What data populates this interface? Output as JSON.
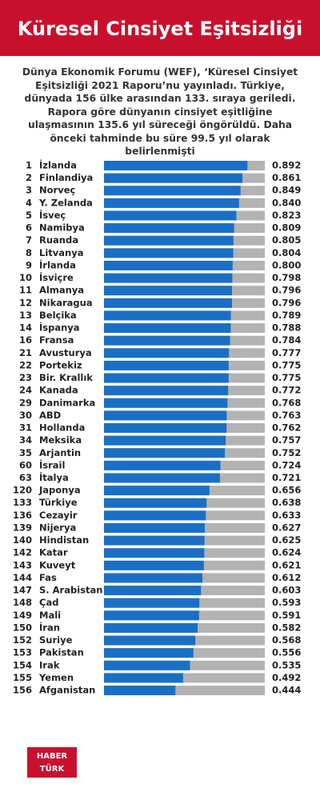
{
  "chart_data": {
    "type": "bar",
    "orientation": "horizontal",
    "title": "Küresel Cinsiyet Eşitsizliği",
    "subtitle": "Dünya Ekonomik Forumu (WEF), ‘Küresel Cinsiyet Eşitsizliği 2021 Raporu’nu yayınladı. Türkiye, dünyada 156 ülke arasından 133. sıraya geriledi. Rapora göre dünyanın cinsiyet eşitliğine ulaşmasının 135.6 yıl süreceği öngörüldü. Daha önceki tahminde bu süre 99.5 yıl olarak belirlenmişti",
    "ranks": [
      1,
      2,
      3,
      4,
      5,
      6,
      7,
      8,
      9,
      10,
      11,
      12,
      13,
      14,
      16,
      21,
      22,
      23,
      24,
      29,
      30,
      31,
      34,
      35,
      60,
      63,
      120,
      133,
      136,
      139,
      140,
      142,
      143,
      144,
      147,
      148,
      149,
      150,
      152,
      153,
      154,
      155,
      156
    ],
    "categories": [
      "İzlanda",
      "Finlandiya",
      "Norveç",
      "Y. Zelanda",
      "İsveç",
      "Namibya",
      "Ruanda",
      "Litvanya",
      "İrlanda",
      "İsviçre",
      "Almanya",
      "Nikaragua",
      "Belçika",
      "İspanya",
      "Fransa",
      "Avusturya",
      "Portekiz",
      "Bir. Krallık",
      "Kanada",
      "Danimarka",
      "ABD",
      "Hollanda",
      "Meksika",
      "Arjantin",
      "İsrail",
      "İtalya",
      "Japonya",
      "Türkiye",
      "Cezayir",
      "Nijerya",
      "Hindistan",
      "Katar",
      "Kuveyt",
      "Fas",
      "S. Arabistan",
      "Çad",
      "Mali",
      "İran",
      "Suriye",
      "Pakistan",
      "Irak",
      "Yemen",
      "Afganistan"
    ],
    "values": [
      0.892,
      0.861,
      0.849,
      0.84,
      0.823,
      0.809,
      0.805,
      0.804,
      0.8,
      0.798,
      0.796,
      0.796,
      0.789,
      0.788,
      0.784,
      0.777,
      0.775,
      0.775,
      0.772,
      0.768,
      0.763,
      0.762,
      0.757,
      0.752,
      0.724,
      0.721,
      0.656,
      0.638,
      0.633,
      0.627,
      0.625,
      0.624,
      0.621,
      0.612,
      0.603,
      0.593,
      0.591,
      0.582,
      0.568,
      0.556,
      0.535,
      0.492,
      0.444
    ],
    "value_labels": [
      "0.892",
      "0.861",
      "0.849",
      "0.840",
      "0.823",
      "0.809",
      "0.805",
      "0.804",
      "0.800",
      "0.798",
      "0.796",
      "0.796",
      "0.789",
      "0.788",
      "0.784",
      "0.777",
      "0.775",
      "0.775",
      "0.772",
      "0.768",
      "0.763",
      "0.762",
      "0.757",
      "0.752",
      "0.724",
      "0.721",
      "0.656",
      "0.638",
      "0.633",
      "0.627",
      "0.625",
      "0.624",
      "0.621",
      "0.612",
      "0.603",
      "0.593",
      "0.591",
      "0.582",
      "0.568",
      "0.556",
      "0.535",
      "0.492",
      "0.444"
    ],
    "color": "#1a6fc4",
    "track_color": "#b3b3b3",
    "xlim": [
      0,
      1
    ]
  },
  "logo": {
    "line1": "HABER",
    "line2": "TÜRK"
  }
}
